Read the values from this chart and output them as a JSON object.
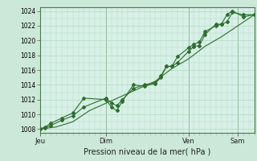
{
  "title": "",
  "xlabel": "Pression niveau de la mer( hPa )",
  "ylabel": "",
  "bg_color": "#cce8d8",
  "plot_bg_color": "#d8f0e8",
  "grid_color": "#b0d8c0",
  "line_color": "#2d6e2d",
  "ylim": [
    1007.5,
    1024.5
  ],
  "yticks": [
    1008,
    1010,
    1012,
    1014,
    1016,
    1018,
    1020,
    1022,
    1024
  ],
  "xlim": [
    0,
    156
  ],
  "day_labels": [
    "Jeu",
    "Dim",
    "Ven",
    "Sam"
  ],
  "day_positions": [
    0,
    48,
    108,
    144
  ],
  "series1_x": [
    0,
    4,
    8,
    16,
    24,
    32,
    48,
    52,
    56,
    60,
    68,
    76,
    84,
    88,
    92,
    96,
    100,
    108,
    112,
    116,
    120,
    128,
    132,
    136,
    140,
    148,
    156
  ],
  "series1_y": [
    1008.0,
    1008.2,
    1008.5,
    1009.2,
    1009.8,
    1011.0,
    1012.2,
    1011.5,
    1011.2,
    1012.0,
    1013.5,
    1014.0,
    1014.3,
    1015.2,
    1016.5,
    1016.5,
    1017.0,
    1018.5,
    1019.2,
    1019.3,
    1020.8,
    1022.2,
    1022.2,
    1022.5,
    1023.8,
    1023.5,
    1023.5
  ],
  "series2_x": [
    0,
    4,
    8,
    16,
    24,
    32,
    48,
    52,
    56,
    60,
    68,
    76,
    84,
    88,
    92,
    96,
    100,
    108,
    112,
    116,
    120,
    128,
    132,
    136,
    140,
    148,
    156
  ],
  "series2_y": [
    1008.0,
    1008.3,
    1008.8,
    1009.5,
    1010.2,
    1012.2,
    1012.0,
    1011.0,
    1010.5,
    1011.8,
    1014.0,
    1013.8,
    1014.2,
    1015.0,
    1016.5,
    1016.5,
    1017.8,
    1019.0,
    1019.5,
    1019.8,
    1021.2,
    1022.0,
    1022.2,
    1023.5,
    1024.0,
    1023.2,
    1023.5
  ],
  "series3_x": [
    0,
    12,
    24,
    36,
    48,
    60,
    72,
    84,
    96,
    108,
    120,
    132,
    144,
    156
  ],
  "series3_y": [
    1008.0,
    1008.3,
    1009.0,
    1010.5,
    1011.5,
    1012.5,
    1013.5,
    1014.5,
    1016.2,
    1017.5,
    1019.2,
    1020.5,
    1022.0,
    1023.5
  ]
}
